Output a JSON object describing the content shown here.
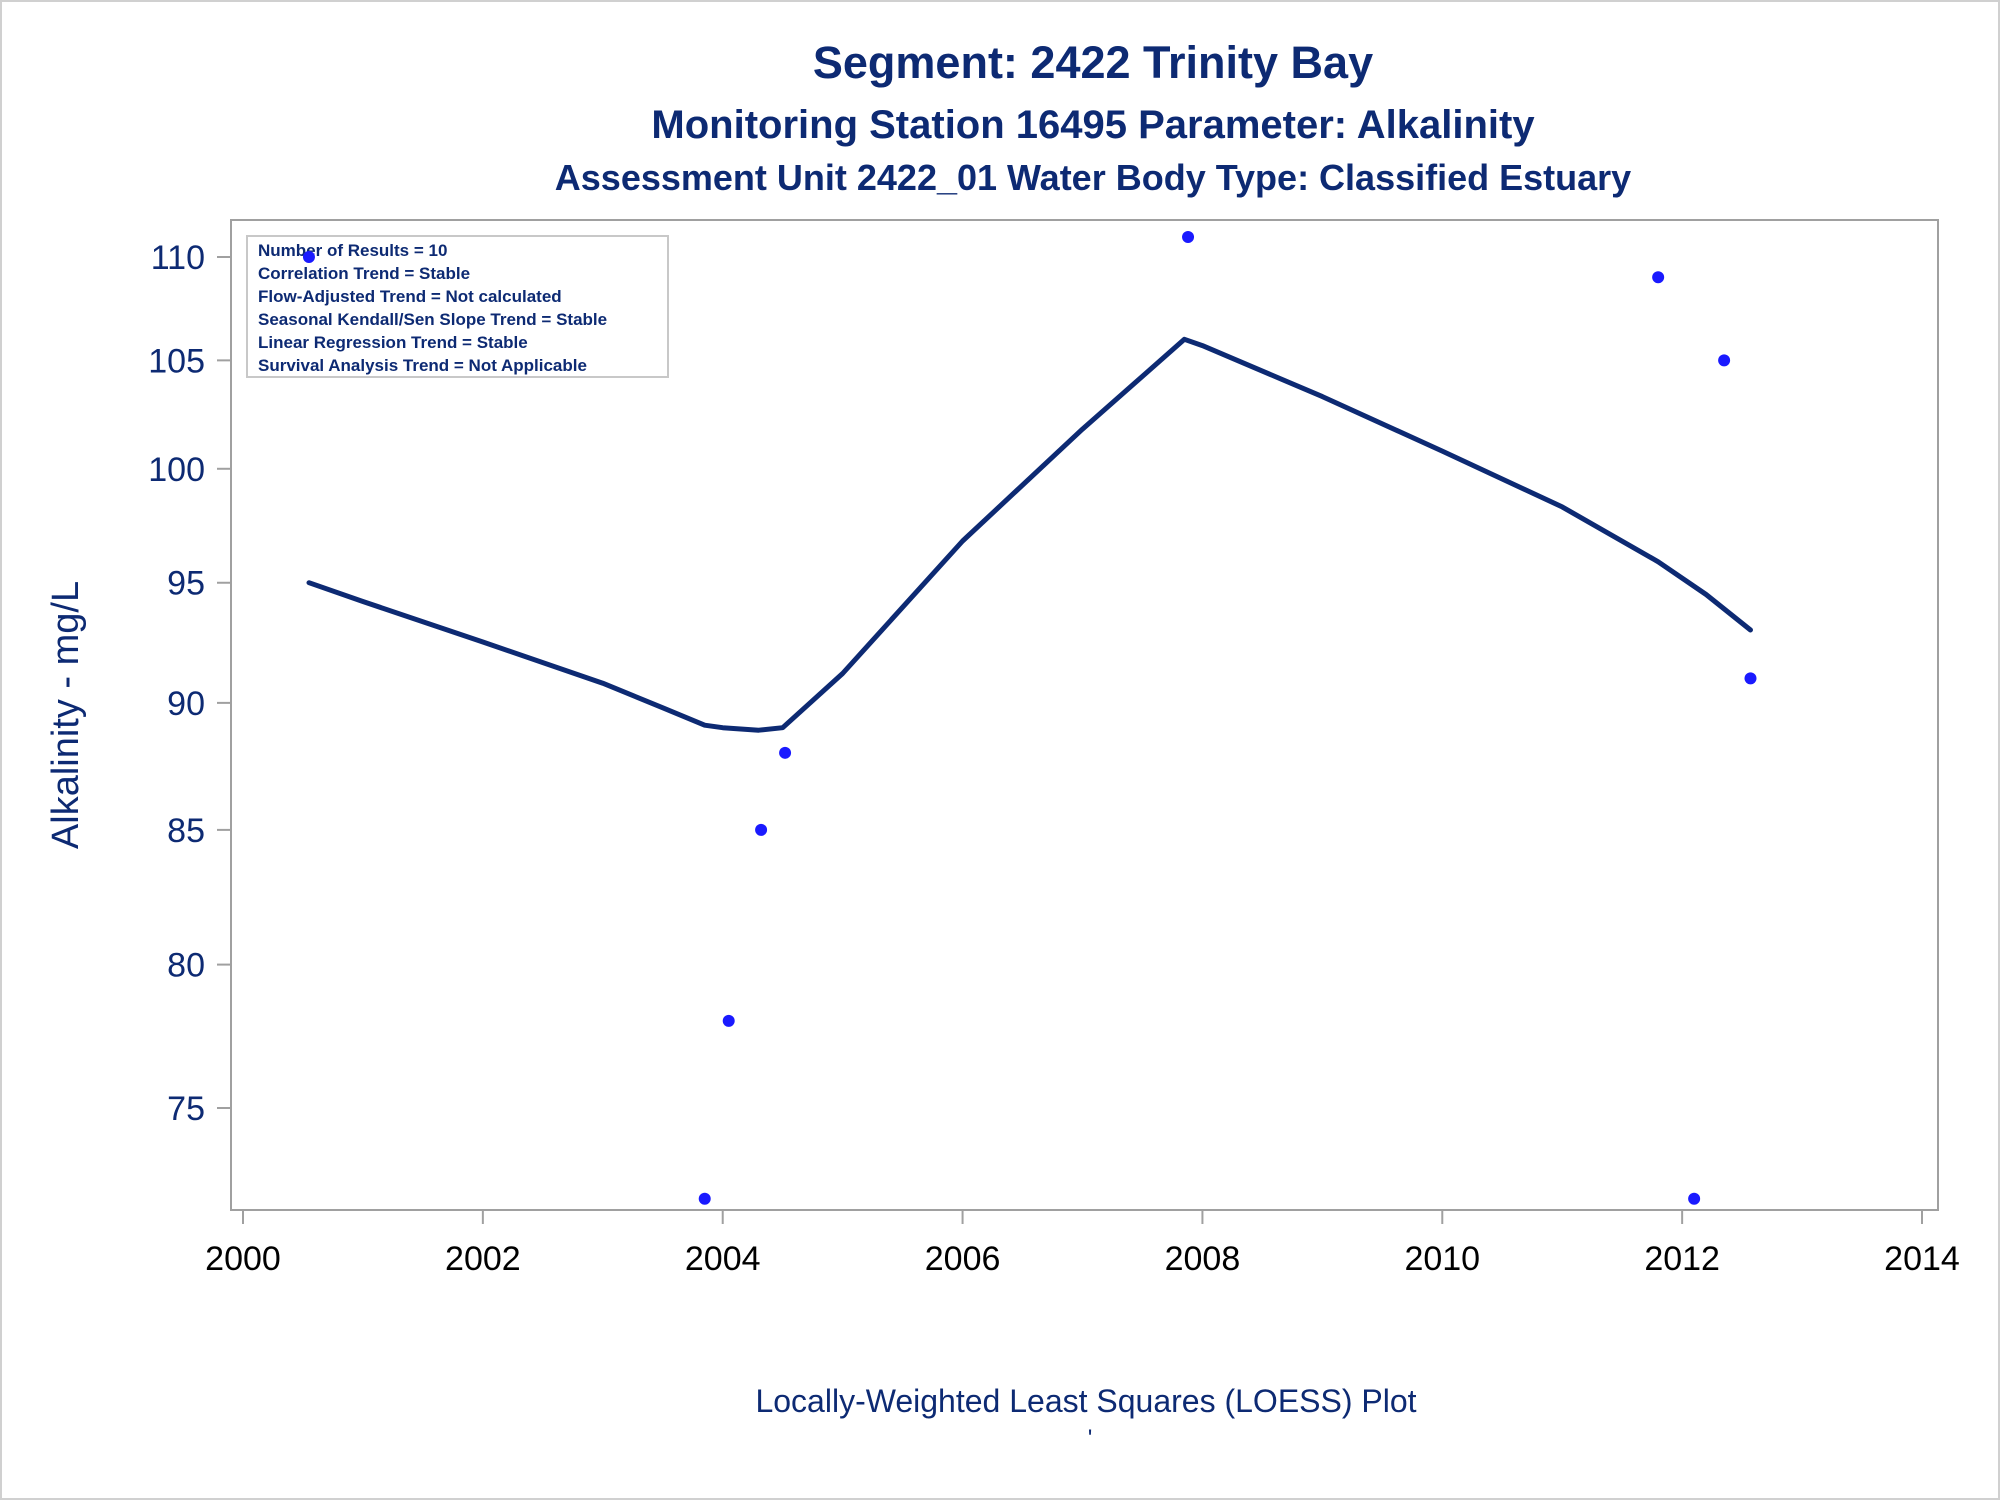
{
  "chart_data": {
    "type": "scatter",
    "title": "Segment: 2422  Trinity Bay",
    "subtitle_1": "Monitoring Station 16495 Parameter: Alkalinity",
    "subtitle_2": "Assessment Unit 2422_01   Water Body Type: Classified Estuary",
    "xlabel": "",
    "ylabel": "Alkalinity - mg/L",
    "footnote": "Locally-Weighted Least Squares (LOESS) Plot",
    "footnote_2": "'",
    "xlim": [
      2000,
      2014
    ],
    "ylim": [
      72,
      112
    ],
    "yscale": "log",
    "xticks": [
      2000,
      2002,
      2004,
      2006,
      2008,
      2010,
      2012,
      2014
    ],
    "yticks": [
      75,
      80,
      85,
      90,
      95,
      100,
      105,
      110
    ],
    "grid": false,
    "legend_position": "top-left",
    "colors": {
      "text": "#0d2a73",
      "points": "#1a1aff",
      "line": "#0d2a73",
      "axis": "#a0a0a0"
    },
    "stats_box": [
      "Number of Results = 10",
      "Correlation Trend = Stable",
      "Flow-Adjusted Trend = Not calculated",
      "Seasonal Kendall/Sen Slope Trend = Stable",
      "Linear Regression Trend = Stable",
      "Survival Analysis Trend = Not Applicable"
    ],
    "series": [
      {
        "type": "scatter",
        "x": [
          2000.55,
          2003.85,
          2004.05,
          2004.32,
          2004.52,
          2007.88,
          2011.8,
          2012.1,
          2012.35,
          2012.57
        ],
        "y": [
          110,
          72,
          78,
          85,
          88,
          111,
          109,
          72,
          105,
          91
        ]
      },
      {
        "type": "line",
        "x": [
          2000.55,
          2001.0,
          2002.0,
          2003.0,
          2003.5,
          2003.85,
          2004.0,
          2004.3,
          2004.5,
          2005.0,
          2006.0,
          2007.0,
          2007.85,
          2008.0,
          2009.0,
          2010.0,
          2011.0,
          2011.8,
          2012.2,
          2012.57
        ],
        "y": [
          95,
          94.2,
          92.5,
          90.8,
          89.8,
          89.1,
          89.0,
          88.9,
          89.0,
          91.2,
          96.8,
          101.8,
          106,
          105.7,
          103.3,
          100.8,
          98.3,
          95.9,
          94.5,
          93
        ]
      }
    ]
  }
}
